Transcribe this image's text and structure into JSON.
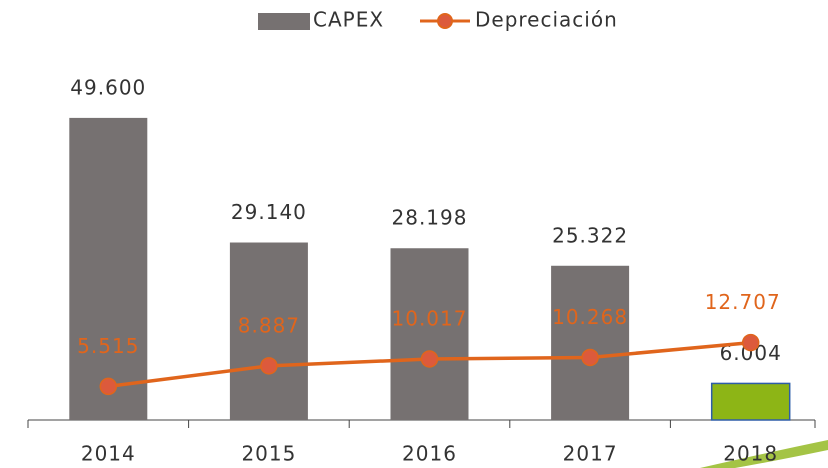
{
  "chart_data": {
    "type": "bar_line",
    "categories": [
      "2014",
      "2015",
      "2016",
      "2017",
      "2018"
    ],
    "series": [
      {
        "name": "CAPEX",
        "type": "bar",
        "color": "#767171",
        "colors": [
          "#767171",
          "#767171",
          "#767171",
          "#767171",
          "#8db516"
        ],
        "values": [
          49600,
          29140,
          28198,
          25322,
          6004
        ],
        "value_labels": [
          "49.600",
          "29.140",
          "28.198",
          "25.322",
          "6.004"
        ]
      },
      {
        "name": "Depreciación",
        "type": "line",
        "color": "#e0651c",
        "marker_color": "#dc5a3c",
        "values": [
          5515,
          8887,
          10017,
          10268,
          12707
        ],
        "value_labels": [
          "5.515",
          "8.887",
          "10.017",
          "10.268",
          "12.707"
        ]
      }
    ],
    "ylim": [
      0,
      55000
    ],
    "legend": "top"
  }
}
